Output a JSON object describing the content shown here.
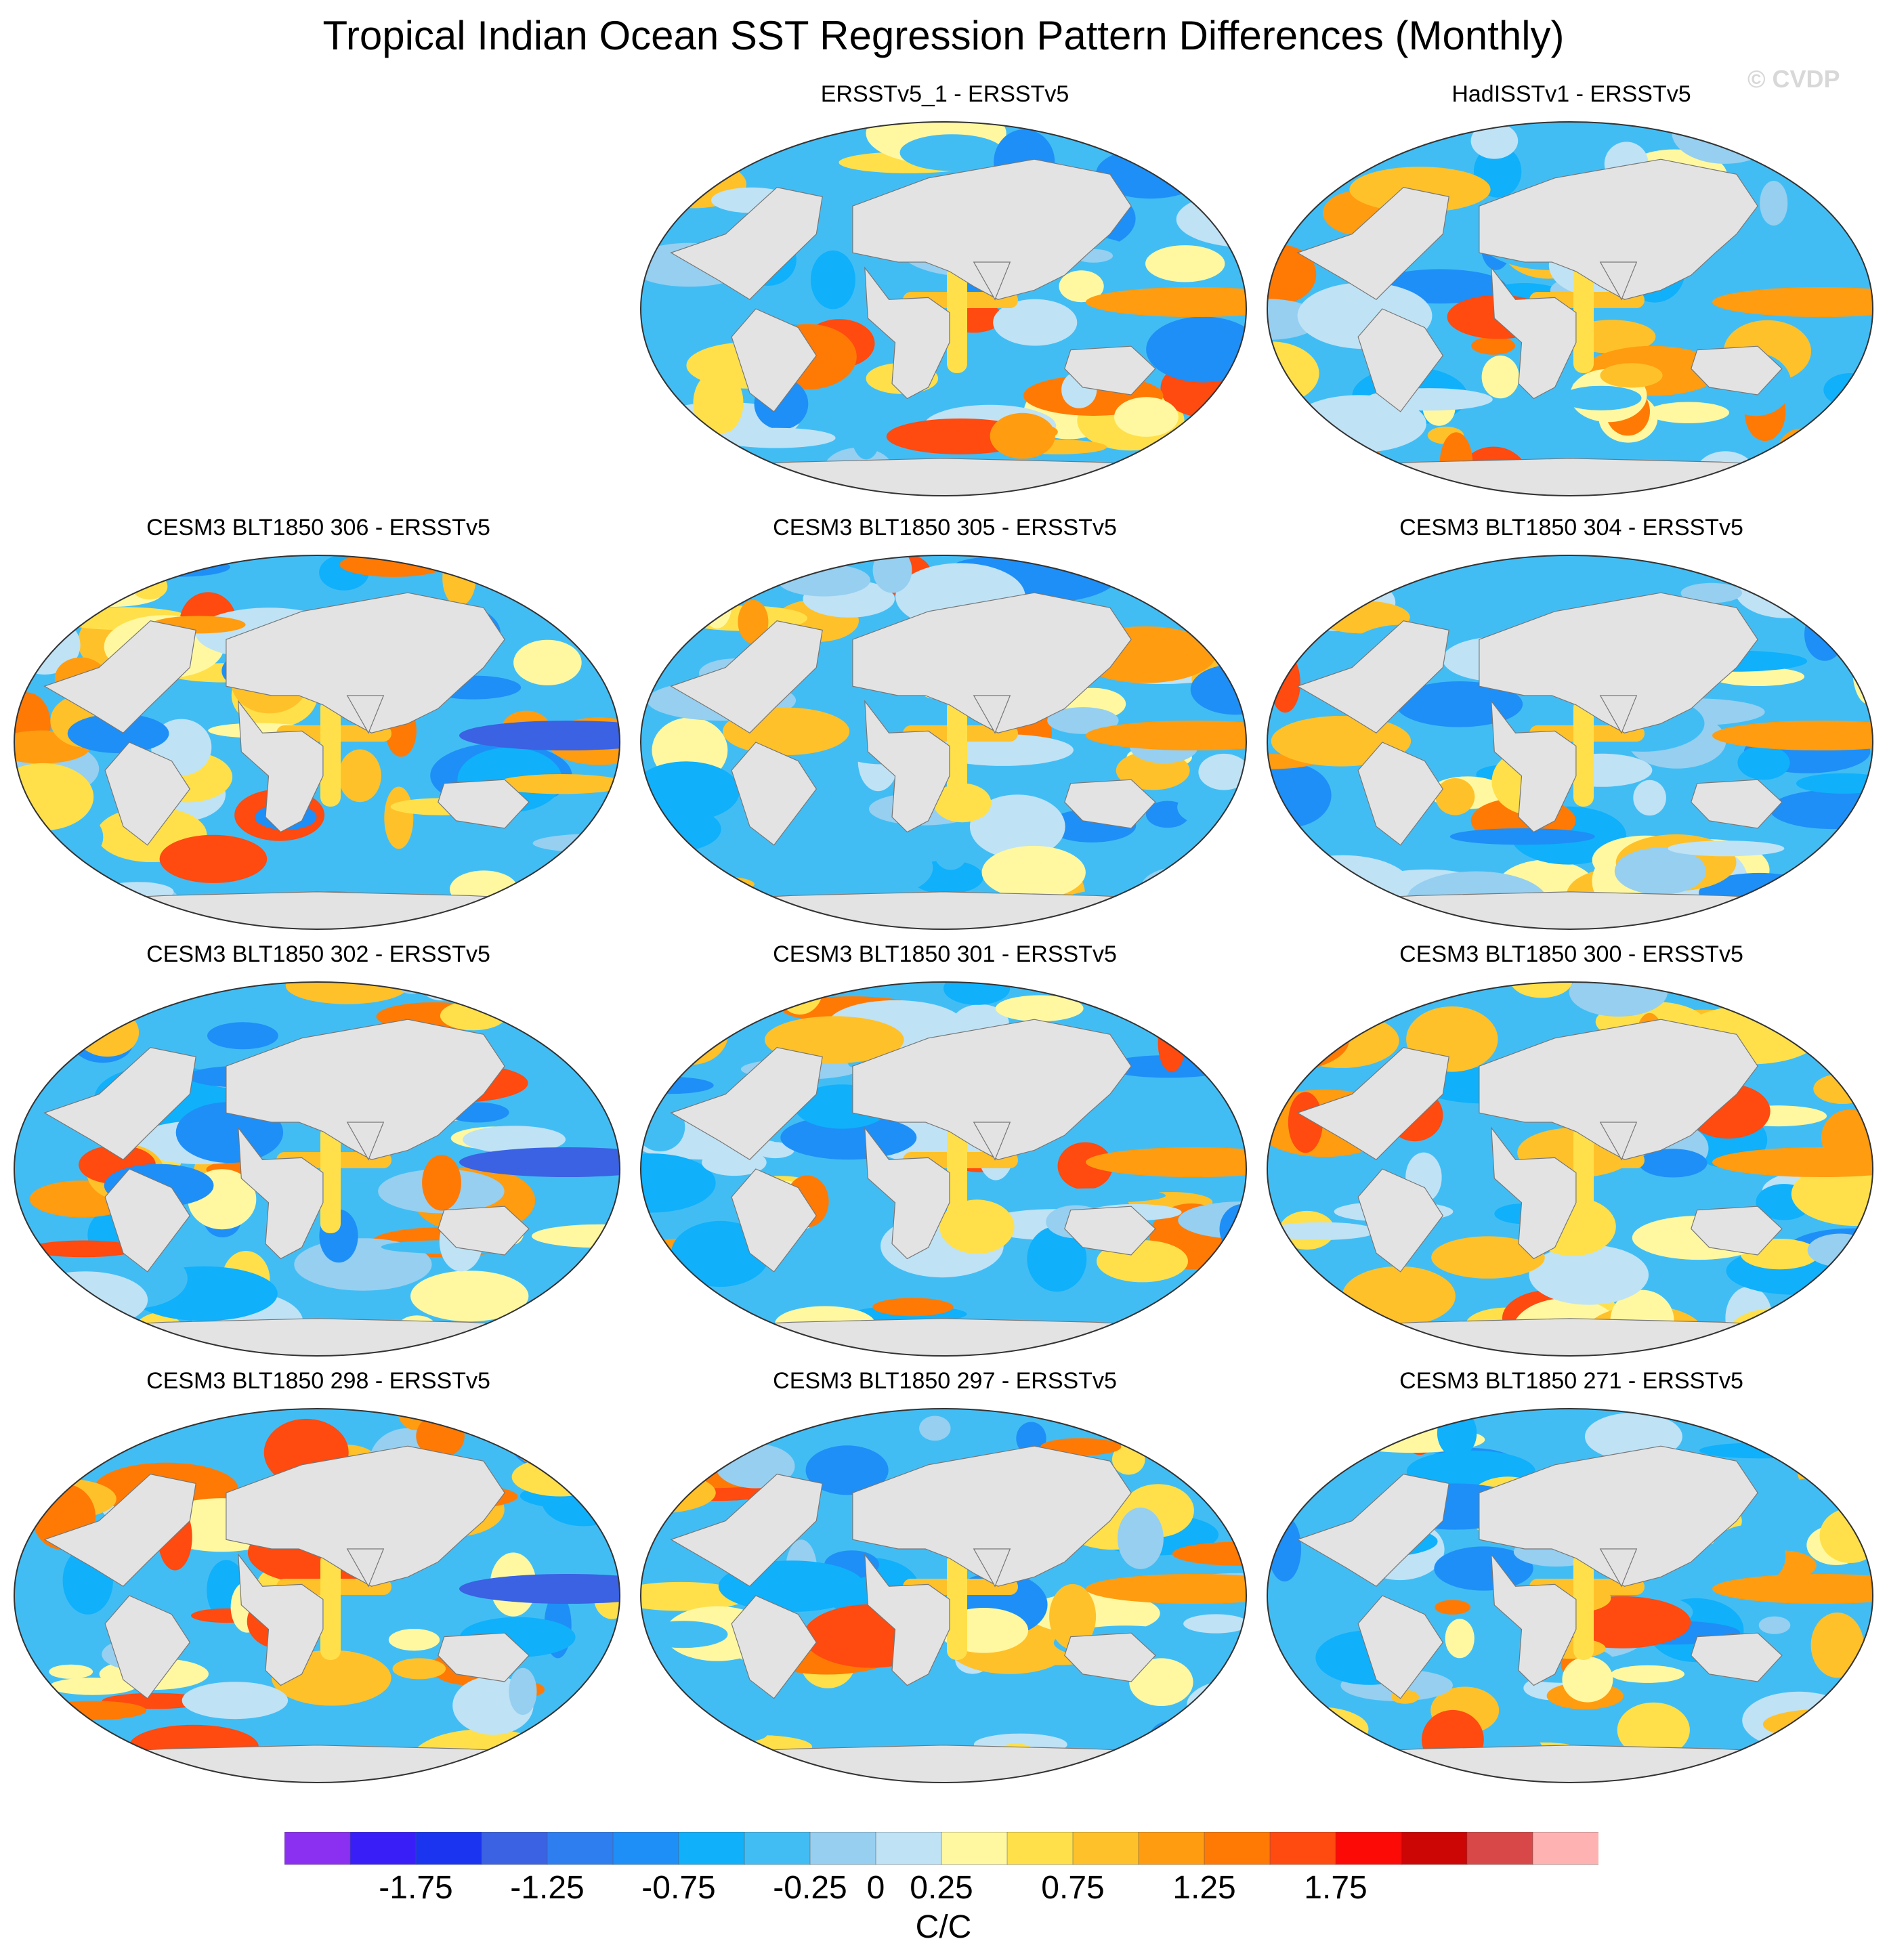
{
  "figure": {
    "title": "Tropical Indian Ocean SST Regression Pattern Differences (Monthly)",
    "watermark": "© CVDP"
  },
  "panels": [
    {
      "title": "ERSSTv5_1 - ERSSTv5",
      "seed": 1
    },
    {
      "title": "HadISSTv1 - ERSSTv5",
      "seed": 2
    },
    {
      "title": "CESM3 BLT1850 306 - ERSSTv5",
      "seed": 3
    },
    {
      "title": "CESM3 BLT1850 305 - ERSSTv5",
      "seed": 4
    },
    {
      "title": "CESM3 BLT1850 304 - ERSSTv5",
      "seed": 5
    },
    {
      "title": "CESM3 BLT1850 302 - ERSSTv5",
      "seed": 6
    },
    {
      "title": "CESM3 BLT1850 301 - ERSSTv5",
      "seed": 7
    },
    {
      "title": "CESM3 BLT1850 300 - ERSSTv5",
      "seed": 8
    },
    {
      "title": "CESM3 BLT1850 298 - ERSSTv5",
      "seed": 9
    },
    {
      "title": "CESM3 BLT1850 297 - ERSSTv5",
      "seed": 10
    },
    {
      "title": "CESM3 BLT1850 271 - ERSSTv5",
      "seed": 11
    }
  ],
  "chart_data": {
    "type": "heatmap",
    "projection": "robinson-like world map",
    "variable": "SST regression pattern difference",
    "colorbar": {
      "unit": "C/C",
      "levels": [
        -2.0,
        -1.75,
        -1.5,
        -1.25,
        -1.0,
        -0.75,
        -0.5,
        -0.25,
        0,
        0.25,
        0.5,
        0.75,
        1.0,
        1.25,
        1.5,
        1.75,
        2.0
      ],
      "tick_labels": [
        "-1.75",
        "-1.25",
        "-0.75",
        "-0.25",
        "0",
        "0.25",
        "0.75",
        "1.25",
        "1.75"
      ],
      "tick_values": [
        -1.75,
        -1.25,
        -0.75,
        -0.25,
        0,
        0.25,
        0.75,
        1.25,
        1.75
      ],
      "colors": [
        "#8b2ff0",
        "#3a1ef8",
        "#1a34f0",
        "#3a62e2",
        "#2f7ef0",
        "#1e8ff7",
        "#10b0fb",
        "#42bdf4",
        "#96cff0",
        "#bfe2f5",
        "#fff8a0",
        "#ffe04a",
        "#ffc12a",
        "#ff9c10",
        "#ff7a05",
        "#ff4a10",
        "#fc0a06",
        "#cc0505",
        "#d84848",
        "#ffb2b2"
      ]
    }
  }
}
